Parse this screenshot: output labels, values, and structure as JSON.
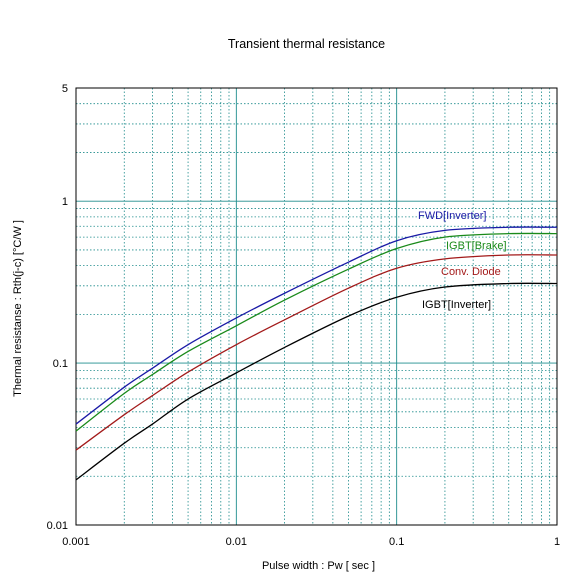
{
  "chart_data": {
    "type": "line",
    "title": "Transient thermal resistance",
    "xlabel": "Pulse width  :  Pw  [ sec ]",
    "ylabel": "Thermal resistanse  :  Rth(j-c)  [°C/W ]",
    "x_scale": "log",
    "y_scale": "log",
    "xlim": [
      0.001,
      1
    ],
    "ylim": [
      0.01,
      5
    ],
    "x_ticks": [
      0.001,
      0.01,
      0.1,
      1
    ],
    "x_tick_labels": [
      "0.001",
      "0.01",
      "0.1",
      "1"
    ],
    "y_ticks": [
      0.01,
      0.1,
      1,
      5
    ],
    "y_tick_labels": [
      "0.01",
      "0.1",
      "1",
      "5"
    ],
    "grid": true,
    "series": [
      {
        "name": "FWD[Inverter]",
        "color": "#1a1aa6",
        "points": [
          [
            0.001,
            0.042
          ],
          [
            0.002,
            0.071
          ],
          [
            0.003,
            0.093
          ],
          [
            0.005,
            0.13
          ],
          [
            0.01,
            0.19
          ],
          [
            0.02,
            0.27
          ],
          [
            0.05,
            0.42
          ],
          [
            0.1,
            0.57
          ],
          [
            0.2,
            0.66
          ],
          [
            0.5,
            0.69
          ],
          [
            1,
            0.69
          ]
        ]
      },
      {
        "name": "IGBT[Brake]",
        "color": "#1a8a1a",
        "points": [
          [
            0.001,
            0.038
          ],
          [
            0.002,
            0.065
          ],
          [
            0.003,
            0.085
          ],
          [
            0.005,
            0.118
          ],
          [
            0.01,
            0.17
          ],
          [
            0.02,
            0.245
          ],
          [
            0.05,
            0.38
          ],
          [
            0.1,
            0.51
          ],
          [
            0.2,
            0.6
          ],
          [
            0.5,
            0.63
          ],
          [
            1,
            0.63
          ]
        ]
      },
      {
        "name": "Conv. Diode",
        "color": "#a31a1a",
        "points": [
          [
            0.001,
            0.029
          ],
          [
            0.002,
            0.048
          ],
          [
            0.003,
            0.063
          ],
          [
            0.005,
            0.088
          ],
          [
            0.01,
            0.13
          ],
          [
            0.02,
            0.185
          ],
          [
            0.05,
            0.29
          ],
          [
            0.1,
            0.385
          ],
          [
            0.2,
            0.44
          ],
          [
            0.5,
            0.465
          ],
          [
            1,
            0.465
          ]
        ]
      },
      {
        "name": "IGBT[Inverter]",
        "color": "#000000",
        "points": [
          [
            0.001,
            0.019
          ],
          [
            0.002,
            0.032
          ],
          [
            0.003,
            0.042
          ],
          [
            0.005,
            0.06
          ],
          [
            0.01,
            0.087
          ],
          [
            0.02,
            0.125
          ],
          [
            0.05,
            0.195
          ],
          [
            0.1,
            0.255
          ],
          [
            0.2,
            0.295
          ],
          [
            0.5,
            0.31
          ],
          [
            1,
            0.31
          ]
        ]
      }
    ]
  }
}
